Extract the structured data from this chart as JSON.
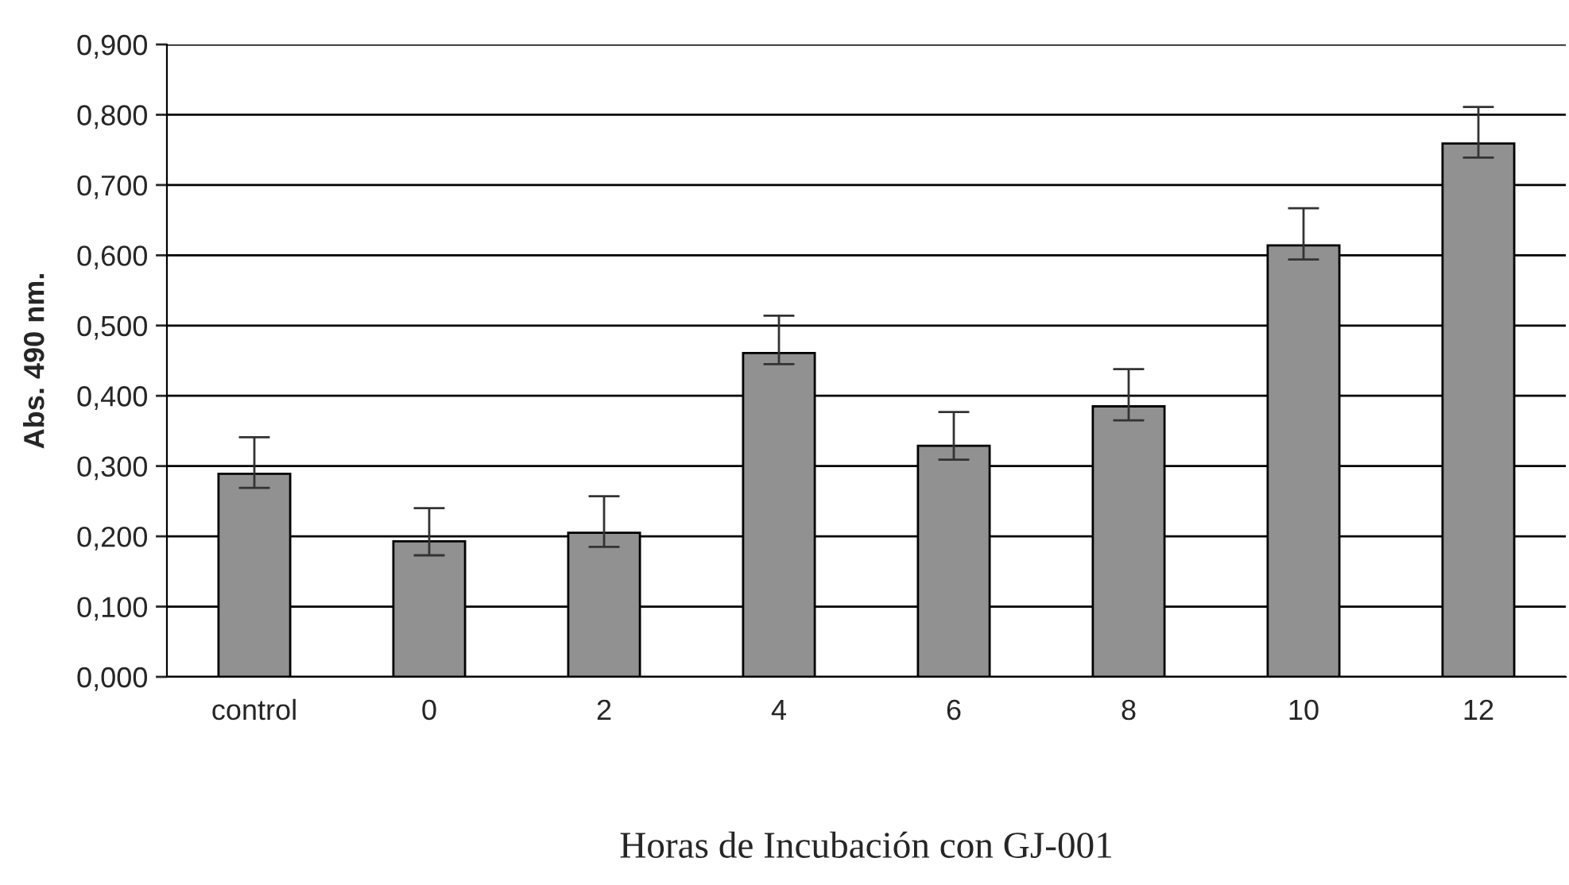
{
  "chart_data": {
    "type": "bar",
    "xlabel": "Horas de Incubación con GJ-001",
    "ylabel": "Abs. 490 nm.",
    "categories": [
      "control",
      "0",
      "2",
      "4",
      "6",
      "8",
      "10",
      "12"
    ],
    "values": [
      0.289,
      0.193,
      0.205,
      0.461,
      0.329,
      0.385,
      0.614,
      0.759
    ],
    "errors": [
      [
        0.269,
        0.341
      ],
      [
        0.173,
        0.24
      ],
      [
        0.185,
        0.257
      ],
      [
        0.445,
        0.514
      ],
      [
        0.309,
        0.377
      ],
      [
        0.365,
        0.438
      ],
      [
        0.594,
        0.667
      ],
      [
        0.739,
        0.811
      ]
    ],
    "color": "#919191",
    "ylim": [
      0,
      0.9
    ],
    "yticks": [
      {
        "value": 0,
        "label": "0,000"
      },
      {
        "value": 0.1,
        "label": "0,100"
      },
      {
        "value": 0.2,
        "label": "0,200"
      },
      {
        "value": 0.3,
        "label": "0,300"
      },
      {
        "value": 0.4,
        "label": "0,400"
      },
      {
        "value": 0.5,
        "label": "0,500"
      },
      {
        "value": 0.6,
        "label": "0,600"
      },
      {
        "value": 0.7,
        "label": "0,700"
      },
      {
        "value": 0.8,
        "label": "0,800"
      },
      {
        "value": 0.9,
        "label": "0,900"
      }
    ],
    "grid": "y",
    "legend": false
  }
}
